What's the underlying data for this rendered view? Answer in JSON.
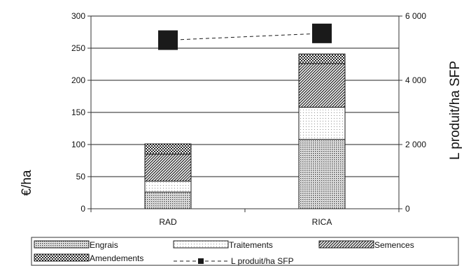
{
  "chart_data": {
    "type": "bar",
    "stacked": true,
    "categories": [
      "RAD",
      "RICA"
    ],
    "series": [
      {
        "name": "Engrais",
        "values": [
          26,
          108
        ],
        "pattern": "dots"
      },
      {
        "name": "Traitements",
        "values": [
          17,
          50
        ],
        "pattern": "sparse-dots"
      },
      {
        "name": "Semences",
        "values": [
          42,
          68
        ],
        "pattern": "diagonal"
      },
      {
        "name": "Amendements",
        "values": [
          16,
          15
        ],
        "pattern": "checker"
      }
    ],
    "line_series": {
      "name": "L produit/ha SFP",
      "axis": "right",
      "values": [
        5250,
        5460
      ],
      "style": "dashed",
      "marker": "square",
      "color": "#1a1a1a"
    },
    "ylabel": "€/ha",
    "y2label": "L produit/ha SFP",
    "ylim": [
      0,
      300
    ],
    "y2lim": [
      0,
      6000
    ],
    "yticks": [
      "0",
      "50",
      "100",
      "150",
      "200",
      "250",
      "300"
    ],
    "y2ticks": [
      "0",
      "2 000",
      "4 000",
      "6 000"
    ],
    "grid": true,
    "legend_position": "bottom"
  }
}
